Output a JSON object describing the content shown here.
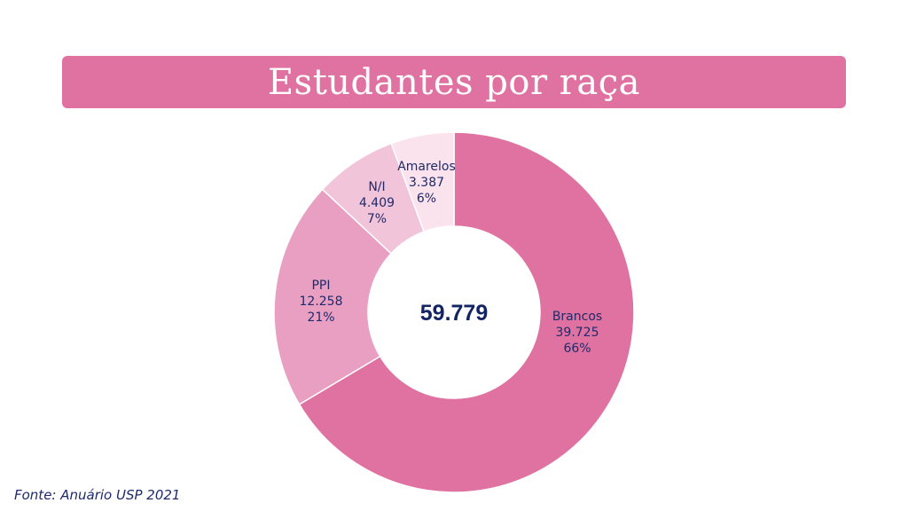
{
  "chart_data": {
    "type": "pie",
    "title": "Estudantes por raça",
    "total_label": "59.779",
    "categories": [
      "Brancos",
      "PPI",
      "N/I",
      "Amarelos"
    ],
    "values": [
      39725,
      12258,
      4409,
      3387
    ],
    "series": [
      {
        "values": [
          39725,
          12258,
          4409,
          3387
        ],
        "value_labels": [
          "39.725",
          "12.258",
          "4.409",
          "3.387"
        ],
        "percent_labels": [
          "66%",
          "21%",
          "7%",
          "6%"
        ]
      }
    ],
    "colors": [
      "#df72a1",
      "#e89fc2",
      "#f2c4da",
      "#fbe3ee"
    ],
    "legend": "none",
    "source": "Fonte: Anuário USP 2021"
  }
}
